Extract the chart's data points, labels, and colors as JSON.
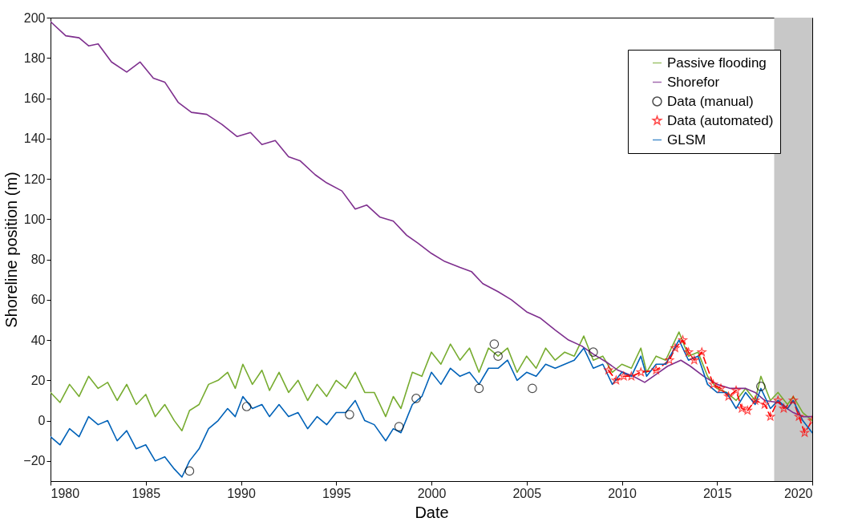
{
  "chart_data": {
    "type": "line",
    "xlabel": "Date",
    "ylabel": "Shoreline position (m)",
    "xlim": [
      1980,
      2020
    ],
    "xticks": [
      1980,
      1985,
      1990,
      1995,
      2000,
      2005,
      2010,
      2015,
      2020
    ],
    "ylim": [
      -30,
      200
    ],
    "yticks": [
      -20,
      0,
      20,
      40,
      60,
      80,
      100,
      120,
      140,
      160,
      180,
      200
    ],
    "grid": false,
    "legend": "top right",
    "bands": [
      {
        "axis": "x",
        "from": 2018,
        "to": 2020,
        "color": "#c8c8c8"
      }
    ],
    "series": [
      {
        "name": "Passive flooding",
        "type": "line",
        "color": "#77ac30",
        "marker": "none",
        "line_style": "solid",
        "x": [
          1980,
          1980.5,
          1981,
          1981.5,
          1982,
          1982.5,
          1983,
          1983.5,
          1984,
          1984.5,
          1985,
          1985.5,
          1986,
          1986.5,
          1986.9,
          1987.3,
          1987.8,
          1988.3,
          1988.8,
          1989.3,
          1989.7,
          1990.1,
          1990.6,
          1991.1,
          1991.5,
          1992,
          1992.5,
          1993,
          1993.5,
          1994,
          1994.5,
          1995,
          1995.5,
          1996,
          1996.5,
          1997,
          1997.6,
          1998,
          1998.4,
          1999,
          1999.5,
          2000,
          2000.5,
          2001,
          2001.5,
          2002,
          2002.5,
          2003,
          2003.5,
          2004,
          2004.5,
          2005,
          2005.5,
          2006,
          2006.5,
          2007,
          2007.5,
          2008,
          2008.5,
          2009,
          2009.5,
          2010,
          2010.5,
          2011,
          2011.3,
          2011.8,
          2012.3,
          2013,
          2013.5,
          2014,
          2014.5,
          2015,
          2015.5,
          2016,
          2016.5,
          2017,
          2017.3,
          2017.8,
          2018.2,
          2018.7,
          2019,
          2019.5,
          2020
        ],
        "values": [
          14,
          9,
          18,
          12,
          22,
          16,
          19,
          10,
          18,
          8,
          13,
          2,
          8,
          0,
          -5,
          5,
          8,
          18,
          20,
          24,
          16,
          28,
          18,
          25,
          15,
          24,
          14,
          20,
          10,
          18,
          12,
          20,
          16,
          24,
          14,
          14,
          2,
          12,
          6,
          24,
          22,
          34,
          28,
          38,
          30,
          36,
          24,
          36,
          32,
          36,
          24,
          32,
          26,
          36,
          30,
          34,
          32,
          42,
          30,
          32,
          24,
          28,
          26,
          36,
          24,
          32,
          30,
          44,
          32,
          34,
          22,
          16,
          14,
          10,
          16,
          10,
          22,
          10,
          14,
          8,
          12,
          4,
          0
        ]
      },
      {
        "name": "Shorefor",
        "type": "line",
        "color": "#7e2f8e",
        "marker": "none",
        "line_style": "solid",
        "x": [
          1980,
          1980.8,
          1981.5,
          1982,
          1982.5,
          1983.2,
          1984,
          1984.7,
          1985.4,
          1986,
          1986.7,
          1987.4,
          1988.2,
          1989,
          1989.8,
          1990.5,
          1991.1,
          1991.8,
          1992.5,
          1993.1,
          1993.9,
          1994.5,
          1995.3,
          1996,
          1996.6,
          1997.3,
          1998,
          1998.7,
          1999.3,
          2000,
          2000.7,
          2001.5,
          2002.1,
          2002.7,
          2003.5,
          2004.2,
          2005,
          2005.7,
          2006.5,
          2007.2,
          2007.9,
          2008.5,
          2009.2,
          2009.8,
          2010.6,
          2011.2,
          2011.8,
          2012.4,
          2013.1,
          2013.6,
          2014.3,
          2015,
          2015.7,
          2016.5,
          2017,
          2017.5,
          2018.2,
          2019,
          2019.5,
          2020
        ],
        "values": [
          198,
          191,
          190,
          186,
          187,
          178,
          173,
          178,
          170,
          168,
          158,
          153,
          152,
          147,
          141,
          143,
          137,
          139,
          131,
          129,
          122,
          118,
          114,
          105,
          107,
          101,
          99,
          92,
          88,
          83,
          79,
          76,
          74,
          68,
          64,
          60,
          54,
          51,
          45,
          40,
          37,
          33,
          29,
          25,
          22,
          19,
          23,
          27,
          30,
          27,
          22,
          18,
          16,
          16,
          14,
          10,
          9,
          4,
          2,
          2
        ]
      },
      {
        "name": "Data (manual)",
        "type": "scatter",
        "color": "#000000",
        "marker": "circle",
        "x": [
          1987.3,
          1990.3,
          1995.7,
          1998.3,
          1999.2,
          2002.5,
          2003.3,
          2003.5,
          2005.3,
          2008.5,
          2017.3
        ],
        "values": [
          -25,
          7,
          3,
          -3,
          11,
          16,
          38,
          32,
          16,
          34,
          17
        ]
      },
      {
        "name": "Data (automated)",
        "type": "line",
        "color": "#ff0000",
        "marker": "star",
        "line_style": "dashed",
        "x": [
          2009.3,
          2009.7,
          2010.1,
          2010.5,
          2011,
          2011.8,
          2012.5,
          2012.8,
          2013.2,
          2013.5,
          2013.8,
          2014.2,
          2014.8,
          2015.2,
          2015.6,
          2016,
          2016.3,
          2016.6,
          2017,
          2017.5,
          2017.8,
          2018.2,
          2018.5,
          2019,
          2019.3,
          2019.6,
          2020
        ],
        "values": [
          25,
          20,
          22,
          22,
          24,
          25,
          30,
          36,
          40,
          34,
          30,
          34,
          18,
          16,
          12,
          15,
          6,
          5,
          10,
          8,
          2,
          10,
          6,
          10,
          2,
          -6,
          0
        ]
      },
      {
        "name": "GLSM",
        "type": "line",
        "color": "#0062b8",
        "marker": "none",
        "line_style": "solid",
        "x": [
          1980,
          1980.5,
          1981,
          1981.5,
          1982,
          1982.5,
          1983,
          1983.5,
          1984,
          1984.5,
          1985,
          1985.5,
          1986,
          1986.5,
          1986.9,
          1987.3,
          1987.8,
          1988.3,
          1988.8,
          1989.3,
          1989.7,
          1990.1,
          1990.6,
          1991.1,
          1991.5,
          1992,
          1992.5,
          1993,
          1993.5,
          1994,
          1994.5,
          1995,
          1995.5,
          1996,
          1996.5,
          1997,
          1997.6,
          1998,
          1998.4,
          1999,
          1999.5,
          2000,
          2000.5,
          2001,
          2001.5,
          2002,
          2002.5,
          2003,
          2003.5,
          2004,
          2004.5,
          2005,
          2005.5,
          2006,
          2006.5,
          2007,
          2007.5,
          2008,
          2008.5,
          2009,
          2009.5,
          2010,
          2010.5,
          2011,
          2011.3,
          2011.8,
          2012.3,
          2013,
          2013.5,
          2014,
          2014.5,
          2015,
          2015.5,
          2016,
          2016.5,
          2017,
          2017.3,
          2017.8,
          2018.2,
          2018.7,
          2019,
          2019.5,
          2020
        ],
        "values": [
          -8,
          -12,
          -4,
          -8,
          2,
          -2,
          0,
          -10,
          -5,
          -14,
          -12,
          -20,
          -18,
          -24,
          -28,
          -20,
          -14,
          -4,
          0,
          6,
          2,
          12,
          6,
          8,
          2,
          8,
          2,
          4,
          -4,
          2,
          -2,
          4,
          4,
          10,
          0,
          -2,
          -10,
          -4,
          -6,
          8,
          12,
          24,
          18,
          26,
          22,
          24,
          18,
          26,
          26,
          30,
          20,
          24,
          22,
          28,
          26,
          28,
          30,
          36,
          26,
          28,
          18,
          24,
          22,
          32,
          22,
          28,
          28,
          40,
          30,
          32,
          18,
          14,
          14,
          6,
          14,
          8,
          16,
          6,
          10,
          6,
          10,
          0,
          -6
        ]
      }
    ]
  }
}
